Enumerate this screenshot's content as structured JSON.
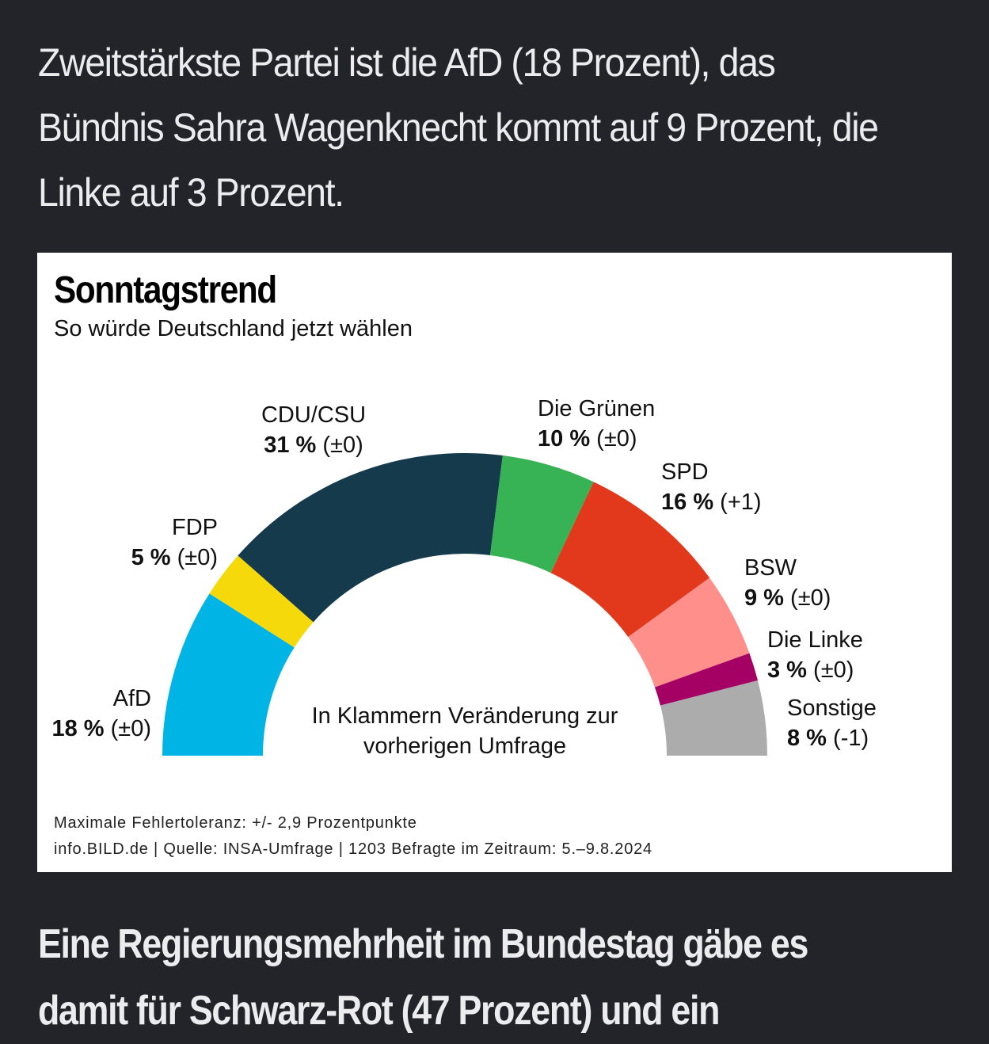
{
  "article": {
    "intro_paragraph": "Zweitstärkste Partei ist die AfD (18 Prozent), das Bündnis Sahra Wagenknecht kommt auf 9 Prozent, die Linke auf 3 Prozent.",
    "outro_paragraph": "Eine Regierungsmehrheit im Bundestag gäbe es damit für Schwarz-Rot (47 Prozent) und ein"
  },
  "graphic": {
    "title": "Sonntagstrend",
    "subtitle": "So würde Deutschland jetzt wählen",
    "note": "In Klammern Veränderung zur vorherigen Umfrage",
    "footer_line1": "Maximale Fehlertoleranz: +/- 2,9 Prozentpunkte",
    "footer_line2": "info.BILD.de | Quelle: INSA-Umfrage | 1203 Befragte im Zeitraum: 5.–9.8.2024"
  },
  "chart_data": {
    "type": "pie",
    "variant": "half-donut",
    "title": "Sonntagstrend",
    "subtitle": "So würde Deutschland jetzt wählen",
    "unit": "%",
    "slices": [
      {
        "name": "AfD",
        "value": 18,
        "change": "(±0)",
        "value_label": "18 %",
        "color": "#00b4e6"
      },
      {
        "name": "FDP",
        "value": 5,
        "change": "(±0)",
        "value_label": "5 %",
        "color": "#f5d90a"
      },
      {
        "name": "CDU/CSU",
        "value": 31,
        "change": "(±0)",
        "value_label": "31 %",
        "color": "#153a4b"
      },
      {
        "name": "Die Grünen",
        "value": 10,
        "change": "(±0)",
        "value_label": "10 %",
        "color": "#37b254"
      },
      {
        "name": "SPD",
        "value": 16,
        "change": "(+1)",
        "value_label": "16 %",
        "color": "#e2381b"
      },
      {
        "name": "BSW",
        "value": 9,
        "change": "(±0)",
        "value_label": "9 %",
        "color": "#ff8f8a"
      },
      {
        "name": "Die Linke",
        "value": 3,
        "change": "(±0)",
        "value_label": "3 %",
        "color": "#a50064"
      },
      {
        "name": "Sonstige",
        "value": 8,
        "change": "(-1)",
        "value_label": "8 %",
        "color": "#acacac"
      }
    ],
    "annotation": "In Klammern Veränderung zur vorherigen Umfrage"
  }
}
